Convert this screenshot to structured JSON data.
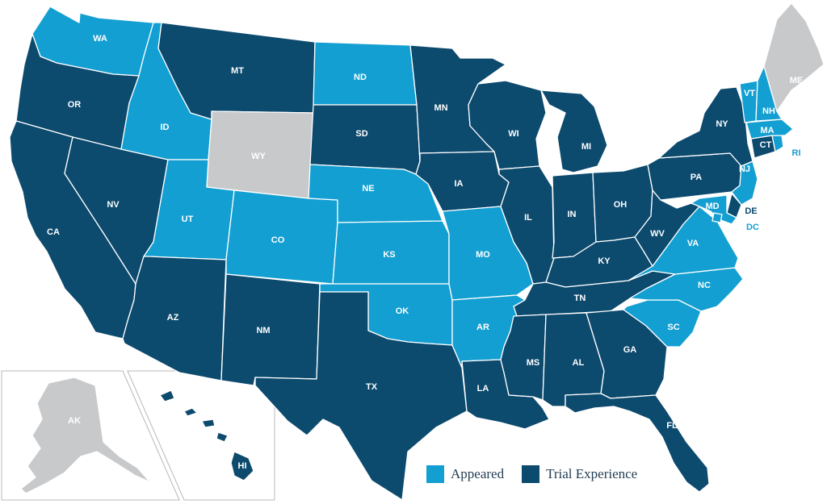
{
  "colors": {
    "appeared": "#139fd1",
    "trial": "#0c4a6e",
    "none": "#c8c9cb",
    "label_on_dark": "#ffffff",
    "label_on_light": "#ffffff",
    "label_offshore_appeared": "#139fd1",
    "label_offshore_trial": "#0c4a6e"
  },
  "legend": {
    "appeared_label": "Appeared",
    "trial_label": "Trial Experience"
  },
  "states": [
    {
      "abbr": "WA",
      "status": "appeared"
    },
    {
      "abbr": "OR",
      "status": "trial"
    },
    {
      "abbr": "CA",
      "status": "trial"
    },
    {
      "abbr": "NV",
      "status": "trial"
    },
    {
      "abbr": "ID",
      "status": "appeared"
    },
    {
      "abbr": "MT",
      "status": "trial"
    },
    {
      "abbr": "WY",
      "status": "none"
    },
    {
      "abbr": "UT",
      "status": "appeared"
    },
    {
      "abbr": "AZ",
      "status": "trial"
    },
    {
      "abbr": "CO",
      "status": "appeared"
    },
    {
      "abbr": "NM",
      "status": "trial"
    },
    {
      "abbr": "ND",
      "status": "appeared"
    },
    {
      "abbr": "SD",
      "status": "trial"
    },
    {
      "abbr": "NE",
      "status": "appeared"
    },
    {
      "abbr": "KS",
      "status": "appeared"
    },
    {
      "abbr": "OK",
      "status": "appeared"
    },
    {
      "abbr": "TX",
      "status": "trial"
    },
    {
      "abbr": "MN",
      "status": "trial"
    },
    {
      "abbr": "IA",
      "status": "trial"
    },
    {
      "abbr": "MO",
      "status": "appeared"
    },
    {
      "abbr": "AR",
      "status": "appeared"
    },
    {
      "abbr": "LA",
      "status": "trial"
    },
    {
      "abbr": "WI",
      "status": "trial"
    },
    {
      "abbr": "IL",
      "status": "trial"
    },
    {
      "abbr": "MI",
      "status": "trial"
    },
    {
      "abbr": "IN",
      "status": "trial"
    },
    {
      "abbr": "OH",
      "status": "trial"
    },
    {
      "abbr": "KY",
      "status": "trial"
    },
    {
      "abbr": "TN",
      "status": "trial"
    },
    {
      "abbr": "MS",
      "status": "trial"
    },
    {
      "abbr": "AL",
      "status": "trial"
    },
    {
      "abbr": "GA",
      "status": "trial"
    },
    {
      "abbr": "FL",
      "status": "trial"
    },
    {
      "abbr": "SC",
      "status": "appeared"
    },
    {
      "abbr": "NC",
      "status": "appeared"
    },
    {
      "abbr": "VA",
      "status": "appeared"
    },
    {
      "abbr": "WV",
      "status": "trial"
    },
    {
      "abbr": "PA",
      "status": "trial"
    },
    {
      "abbr": "NY",
      "status": "trial"
    },
    {
      "abbr": "NJ",
      "status": "appeared"
    },
    {
      "abbr": "DE",
      "status": "trial"
    },
    {
      "abbr": "MD",
      "status": "appeared"
    },
    {
      "abbr": "DC",
      "status": "appeared"
    },
    {
      "abbr": "CT",
      "status": "trial"
    },
    {
      "abbr": "RI",
      "status": "appeared"
    },
    {
      "abbr": "MA",
      "status": "appeared"
    },
    {
      "abbr": "VT",
      "status": "appeared"
    },
    {
      "abbr": "NH",
      "status": "appeared"
    },
    {
      "abbr": "ME",
      "status": "none"
    },
    {
      "abbr": "AK",
      "status": "none"
    },
    {
      "abbr": "HI",
      "status": "trial"
    }
  ]
}
